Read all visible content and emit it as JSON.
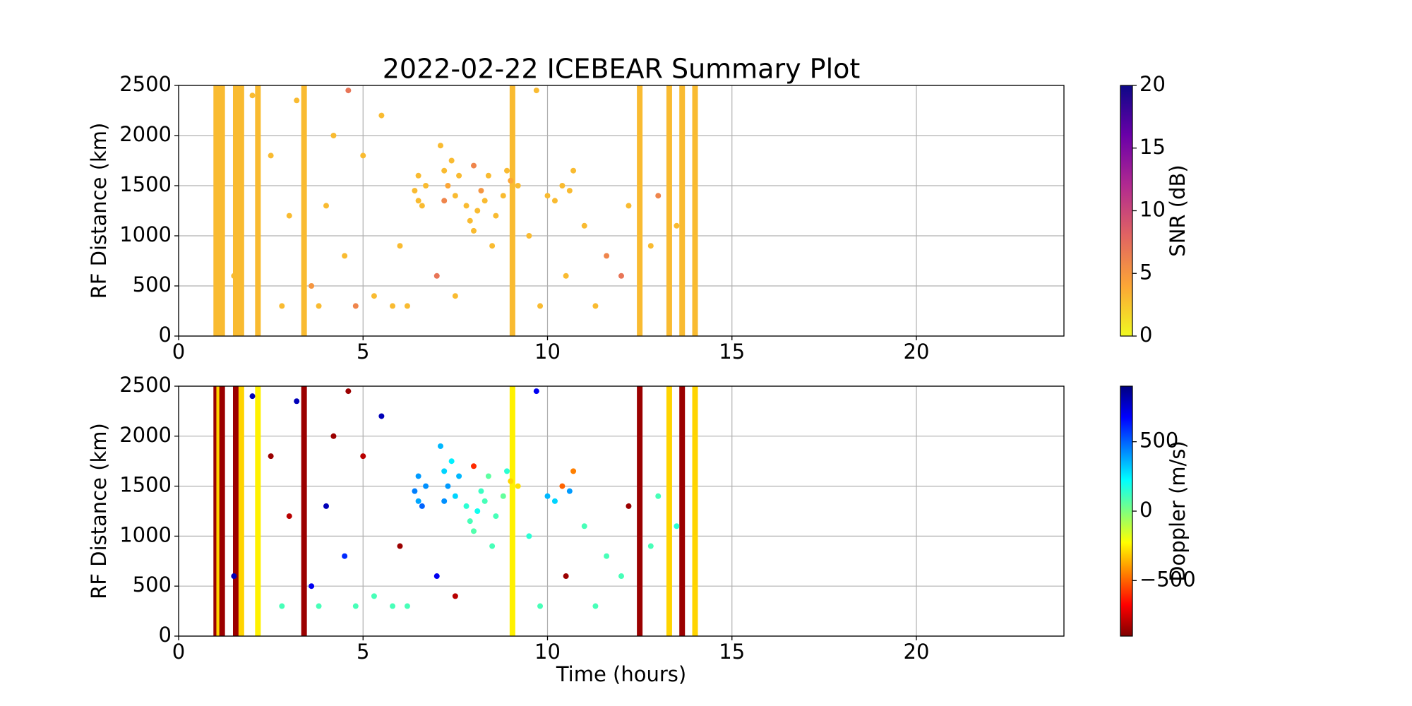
{
  "chart_data": [
    {
      "type": "scatter",
      "title": "2022-02-22 ICEBEAR Summary Plot",
      "ylabel": "RF Distance (km)",
      "xlim": [
        0,
        24
      ],
      "xticks": [
        0,
        5,
        10,
        15,
        20
      ],
      "ylim": [
        0,
        2500
      ],
      "yticks": [
        0,
        500,
        1000,
        1500,
        2000,
        2500
      ],
      "grid": true,
      "x": [
        6.4,
        6.5,
        6.6,
        6.7,
        6.5,
        7.1,
        7.2,
        7.3,
        7.4,
        7.5,
        7.6,
        7.2,
        7.8,
        7.9,
        8.0,
        8.1,
        8.2,
        8.3,
        8.4,
        8.0,
        8.6,
        8.8,
        8.9,
        9.0,
        9.2,
        10.0,
        10.2,
        10.4,
        10.6,
        10.7,
        1.5,
        2.5,
        2.8,
        3.0,
        3.6,
        3.8,
        4.0,
        4.2,
        4.5,
        4.8,
        5.0,
        5.3,
        5.5,
        5.8,
        6.0,
        6.2,
        7.0,
        7.5,
        8.5,
        9.5,
        9.8,
        10.5,
        11.0,
        11.3,
        11.6,
        12.0,
        12.2,
        12.8,
        13.0,
        13.5,
        2.0,
        4.6,
        3.2,
        9.7
      ],
      "y": [
        1450,
        1600,
        1300,
        1500,
        1350,
        1900,
        1650,
        1500,
        1750,
        1400,
        1600,
        1350,
        1300,
        1150,
        1050,
        1250,
        1450,
        1350,
        1600,
        1700,
        1200,
        1400,
        1650,
        1550,
        1500,
        1400,
        1350,
        1500,
        1450,
        1650,
        600,
        1800,
        300,
        1200,
        500,
        300,
        1300,
        2000,
        800,
        300,
        1800,
        400,
        2200,
        300,
        900,
        300,
        600,
        400,
        900,
        1000,
        300,
        600,
        1100,
        300,
        800,
        600,
        1300,
        900,
        1400,
        1100,
        2400,
        2450,
        2350,
        2450
      ],
      "c": [
        3,
        3,
        3,
        3,
        3,
        3,
        3,
        4,
        3,
        3,
        3,
        6,
        3,
        3,
        3,
        3,
        5,
        3,
        3,
        6,
        3,
        3,
        3,
        4,
        3,
        3,
        3,
        3,
        3,
        3,
        3,
        3,
        3,
        3,
        5,
        3,
        3,
        3,
        3,
        6,
        3,
        3,
        3,
        3,
        3,
        3,
        7,
        3,
        3,
        3,
        3,
        3,
        3,
        3,
        6,
        7,
        3,
        3,
        6,
        3,
        3,
        7,
        3,
        3
      ],
      "stripes": {
        "x": [
          1.02,
          1.1,
          1.18,
          1.55,
          1.7,
          2.15,
          3.4,
          9.05,
          12.5,
          13.3,
          13.65,
          14.0
        ],
        "y0": [
          0,
          0,
          0,
          0,
          0,
          0,
          0,
          0,
          0,
          0,
          0,
          0
        ],
        "y1": [
          2500,
          2500,
          2500,
          2500,
          2500,
          2500,
          2500,
          2500,
          2500,
          2500,
          2500,
          2500
        ],
        "c": [
          3,
          3,
          3,
          3,
          3,
          3,
          3,
          3,
          3,
          3,
          3,
          3
        ]
      },
      "colorbar": {
        "label": "SNR (dB)",
        "lim": [
          0,
          20
        ],
        "ticks": [
          0,
          5,
          10,
          15,
          20
        ],
        "colormap": [
          "#f0f921",
          "#fca636",
          "#e16462",
          "#b12a90",
          "#6a00a8",
          "#0d0887"
        ]
      }
    },
    {
      "type": "scatter",
      "ylabel": "RF Distance (km)",
      "xlabel": "Time (hours)",
      "xlim": [
        0,
        24
      ],
      "xticks": [
        0,
        5,
        10,
        15,
        20
      ],
      "ylim": [
        0,
        2500
      ],
      "yticks": [
        0,
        500,
        1000,
        1500,
        2000,
        2500
      ],
      "grid": true,
      "x": [
        6.4,
        6.5,
        6.6,
        6.7,
        6.5,
        7.1,
        7.2,
        7.3,
        7.4,
        7.5,
        7.6,
        7.2,
        7.8,
        7.9,
        8.0,
        8.1,
        8.2,
        8.3,
        8.4,
        8.0,
        8.6,
        8.8,
        8.9,
        9.0,
        9.2,
        10.0,
        10.2,
        10.4,
        10.6,
        10.7,
        1.5,
        2.5,
        2.8,
        3.0,
        3.6,
        3.8,
        4.0,
        4.2,
        4.5,
        4.8,
        5.0,
        5.3,
        5.5,
        5.8,
        6.0,
        6.2,
        7.0,
        7.5,
        8.5,
        9.5,
        9.8,
        10.5,
        11.0,
        11.3,
        11.6,
        12.0,
        12.2,
        12.8,
        13.0,
        13.5,
        2.0,
        4.6,
        3.2,
        9.7
      ],
      "y": [
        1450,
        1600,
        1300,
        1500,
        1350,
        1900,
        1650,
        1500,
        1750,
        1400,
        1600,
        1350,
        1300,
        1150,
        1050,
        1250,
        1450,
        1350,
        1600,
        1700,
        1200,
        1400,
        1650,
        1550,
        1500,
        1400,
        1350,
        1500,
        1450,
        1650,
        600,
        1800,
        300,
        1200,
        500,
        300,
        1300,
        2000,
        800,
        300,
        1800,
        400,
        2200,
        300,
        900,
        300,
        600,
        400,
        900,
        1000,
        300,
        600,
        1100,
        300,
        800,
        600,
        1300,
        900,
        1400,
        1100,
        2400,
        2450,
        2350,
        2450
      ],
      "c": [
        450,
        400,
        500,
        420,
        380,
        350,
        300,
        400,
        250,
        300,
        350,
        420,
        150,
        100,
        80,
        200,
        120,
        100,
        60,
        -600,
        100,
        50,
        150,
        -300,
        -280,
        350,
        300,
        -500,
        400,
        -450,
        800,
        -850,
        100,
        -800,
        700,
        100,
        800,
        -850,
        600,
        100,
        -800,
        100,
        800,
        100,
        -850,
        100,
        700,
        -800,
        100,
        150,
        100,
        -850,
        100,
        100,
        100,
        100,
        -850,
        100,
        100,
        150,
        800,
        -850,
        800,
        700
      ],
      "stripes": {
        "x": [
          1.02,
          1.1,
          1.18,
          1.55,
          1.7,
          2.15,
          3.4,
          9.05,
          12.5,
          13.3,
          13.65,
          14.0
        ],
        "y0": [
          0,
          0,
          0,
          0,
          0,
          0,
          0,
          0,
          0,
          0,
          0,
          0
        ],
        "y1": [
          2500,
          2500,
          2500,
          2500,
          2500,
          2500,
          2500,
          2500,
          2500,
          2500,
          2500,
          2500
        ],
        "c": [
          -850,
          -300,
          -850,
          -850,
          -300,
          -250,
          -850,
          -250,
          -850,
          -300,
          -850,
          -300
        ]
      },
      "colorbar": {
        "label": "Doppler (m/s)",
        "lim": [
          -900,
          900
        ],
        "ticks": [
          {
            "value": -500,
            "label": "−500"
          },
          0,
          500
        ],
        "colormap": [
          "#7f0000",
          "#ff0000",
          "#ff7f00",
          "#ffff00",
          "#7fff7f",
          "#00ffff",
          "#007fff",
          "#0000ff",
          "#00007f"
        ]
      }
    }
  ]
}
